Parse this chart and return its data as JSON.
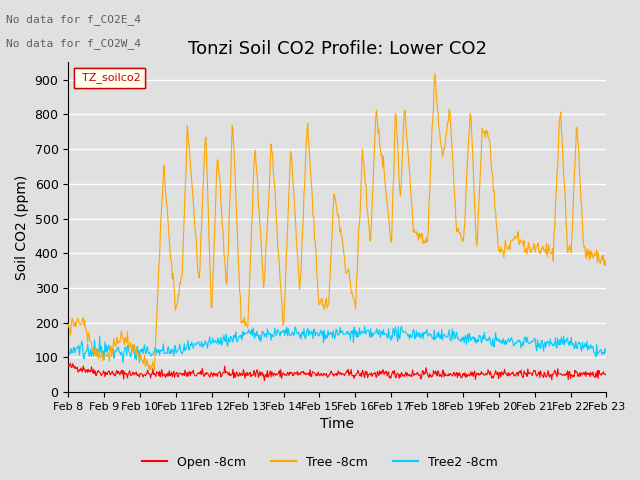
{
  "title": "Tonzi Soil CO2 Profile: Lower CO2",
  "subtitle_lines": [
    "No data for f_CO2E_4",
    "No data for f_CO2W_4"
  ],
  "xlabel": "Time",
  "ylabel": "Soil CO2 (ppm)",
  "ylim": [
    0,
    950
  ],
  "yticks": [
    0,
    100,
    200,
    300,
    400,
    500,
    600,
    700,
    800,
    900
  ],
  "xtick_labels": [
    "Feb 8",
    "Feb 9",
    "Feb 10",
    "Feb 11",
    "Feb 12",
    "Feb 13",
    "Feb 14",
    "Feb 15",
    "Feb 16",
    "Feb 17",
    "Feb 18",
    "Feb 19",
    "Feb 20",
    "Feb 21",
    "Feb 22",
    "Feb 23"
  ],
  "legend_label": "TZ_soilco2",
  "series_labels": [
    "Open -8cm",
    "Tree -8cm",
    "Tree2 -8cm"
  ],
  "series_colors": [
    "#ff0000",
    "#ffa500",
    "#00ccff"
  ],
  "background_color": "#e0e0e0",
  "plot_bg_color": "#e0e0e0",
  "grid_color": "#ffffff",
  "title_fontsize": 13,
  "axis_fontsize": 10,
  "tick_fontsize": 9
}
